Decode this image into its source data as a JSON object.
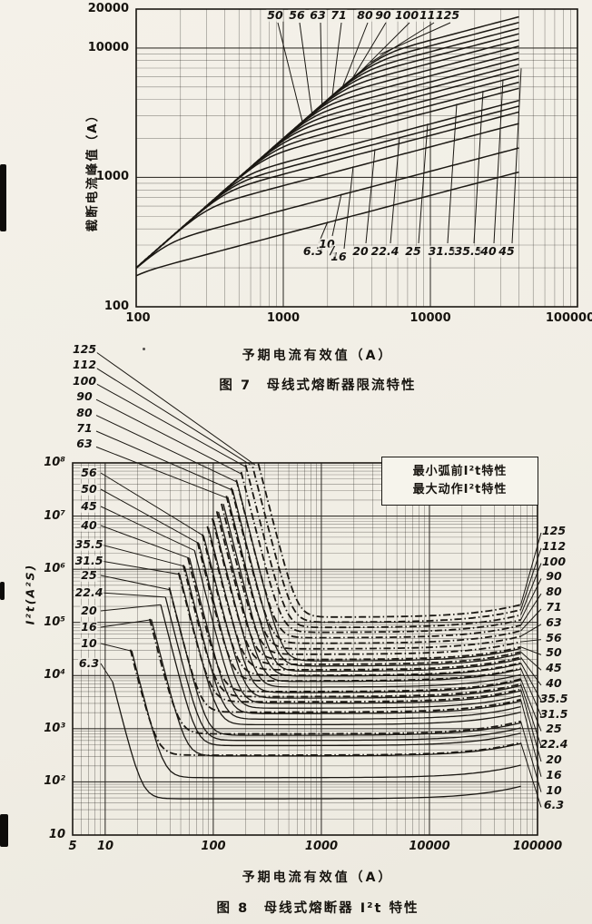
{
  "page": {
    "background": "#f2efe6",
    "ink": "#17140f"
  },
  "figure7": {
    "ylabel": "截断电流峰值（A）",
    "xlabel": "予期电流有效值（A）",
    "caption": "图 7　母线式熔断器限流特性",
    "x_ticks": [
      "100",
      "1000",
      "10000",
      "100000"
    ],
    "y_ticks": [
      "20000",
      "10000",
      "1000",
      "100"
    ],
    "top_curve_labels": [
      "50",
      "56",
      "63",
      "71",
      "80",
      "90",
      "100",
      "112",
      "125"
    ],
    "bottom_curve_labels": [
      "6.3",
      "10",
      "16",
      "20",
      "22.4",
      "25",
      "31.5",
      "35.5",
      "40",
      "45"
    ],
    "fraction_slash": "/"
  },
  "figure8": {
    "ylabel": "I²t(A²S)",
    "xlabel": "予期电流有效值（A）",
    "caption": "图 8　母线式熔断器 I²t 特性",
    "x_ticks": [
      "5",
      "10",
      "100",
      "1000",
      "10000",
      "100000"
    ],
    "y_ticks": [
      "10⁸",
      "10⁷",
      "10⁶",
      "10⁵",
      "10⁴",
      "10³",
      "10²",
      "10"
    ],
    "legend": [
      {
        "label": "最小弧前I²t特性",
        "style": "solid"
      },
      {
        "label": "最大动作I²t特性",
        "style": "dashdot"
      }
    ],
    "left_outer_labels": [
      "125",
      "112",
      "100",
      "90",
      "80",
      "71",
      "63"
    ],
    "left_inner_labels": [
      "56",
      "50",
      "45",
      "40",
      "35.5",
      "31.5",
      "25",
      "22.4",
      "20",
      "16",
      "10",
      "6.3"
    ],
    "right_labels": [
      "125",
      "112",
      "100",
      "90",
      "80",
      "71",
      "63",
      "56",
      "50",
      "45",
      "40",
      "35.5",
      "31.5",
      "25",
      "22.4",
      "20",
      "16",
      "10",
      "6.3"
    ]
  },
  "chart_data": [
    {
      "type": "line",
      "title": "图7 母线式熔断器限流特性",
      "xlabel": "予期电流有效值（A）",
      "ylabel": "截断电流峰值（A）",
      "xscale": "log",
      "yscale": "log",
      "xlim": [
        100,
        100000
      ],
      "ylim": [
        100,
        20000
      ],
      "x_ticks": [
        100,
        1000,
        10000,
        100000
      ],
      "y_ticks": [
        100,
        1000,
        10000,
        20000
      ],
      "grid": "log major+minor",
      "legend_position": "none",
      "ratings_A": [
        6.3,
        10,
        16,
        20,
        22.4,
        25,
        31.5,
        35.5,
        40,
        45,
        50,
        56,
        63,
        71,
        80,
        90,
        100,
        112,
        125
      ],
      "prospective_peak_factor": 2.0,
      "plateau_slope_loglog": 0.3,
      "curve_x_start": 100,
      "curve_x_end": 40000,
      "cutoff_peak_at_40kA": [
        1100,
        1690,
        2610,
        3200,
        3550,
        3930,
        4880,
        5440,
        6080,
        6780,
        7470,
        8290,
        9250,
        10340,
        11550,
        12880,
        14200,
        15760,
        17440
      ]
    },
    {
      "type": "line",
      "title": "图8 母线式熔断器I²t特性",
      "xlabel": "予期电流有效值（A）",
      "ylabel": "I²t(A²S)",
      "xscale": "log",
      "yscale": "log",
      "xlim": [
        5,
        100000
      ],
      "ylim": [
        10,
        100000000
      ],
      "x_ticks": [
        5,
        10,
        100,
        1000,
        10000,
        100000
      ],
      "y_ticks": [
        10,
        100,
        1000,
        10000,
        100000,
        1000000,
        10000000,
        100000000
      ],
      "grid": "log major+minor",
      "legend_position": "top-right",
      "ratings_A": [
        6.3,
        10,
        16,
        20,
        22.4,
        25,
        31.5,
        35.5,
        40,
        45,
        50,
        56,
        63,
        71,
        80,
        90,
        100,
        112,
        125
      ],
      "curve_x_end": 70000,
      "series": [
        {
          "name": "最小弧前I²t特性",
          "style": "solid",
          "knee_current_factor": 3.5,
          "plateau_I2t_A2s": [
            48,
            120,
            307,
            480,
            602,
            750,
            1190,
            1510,
            1920,
            2430,
            3000,
            3760,
            4760,
            6050,
            7680,
            9720,
            12000,
            15050,
            18750
          ]
        },
        {
          "name": "最大动作I²t特性",
          "style": "dashdot",
          "knee_current_factor": 4.8,
          "plateau_I2t_A2s": [
            318,
            800,
            2050,
            3200,
            4010,
            5000,
            7940,
            10080,
            12800,
            16200,
            20000,
            25090,
            31750,
            40330,
            51200,
            64800,
            80000,
            100350,
            125000
          ]
        }
      ]
    }
  ]
}
